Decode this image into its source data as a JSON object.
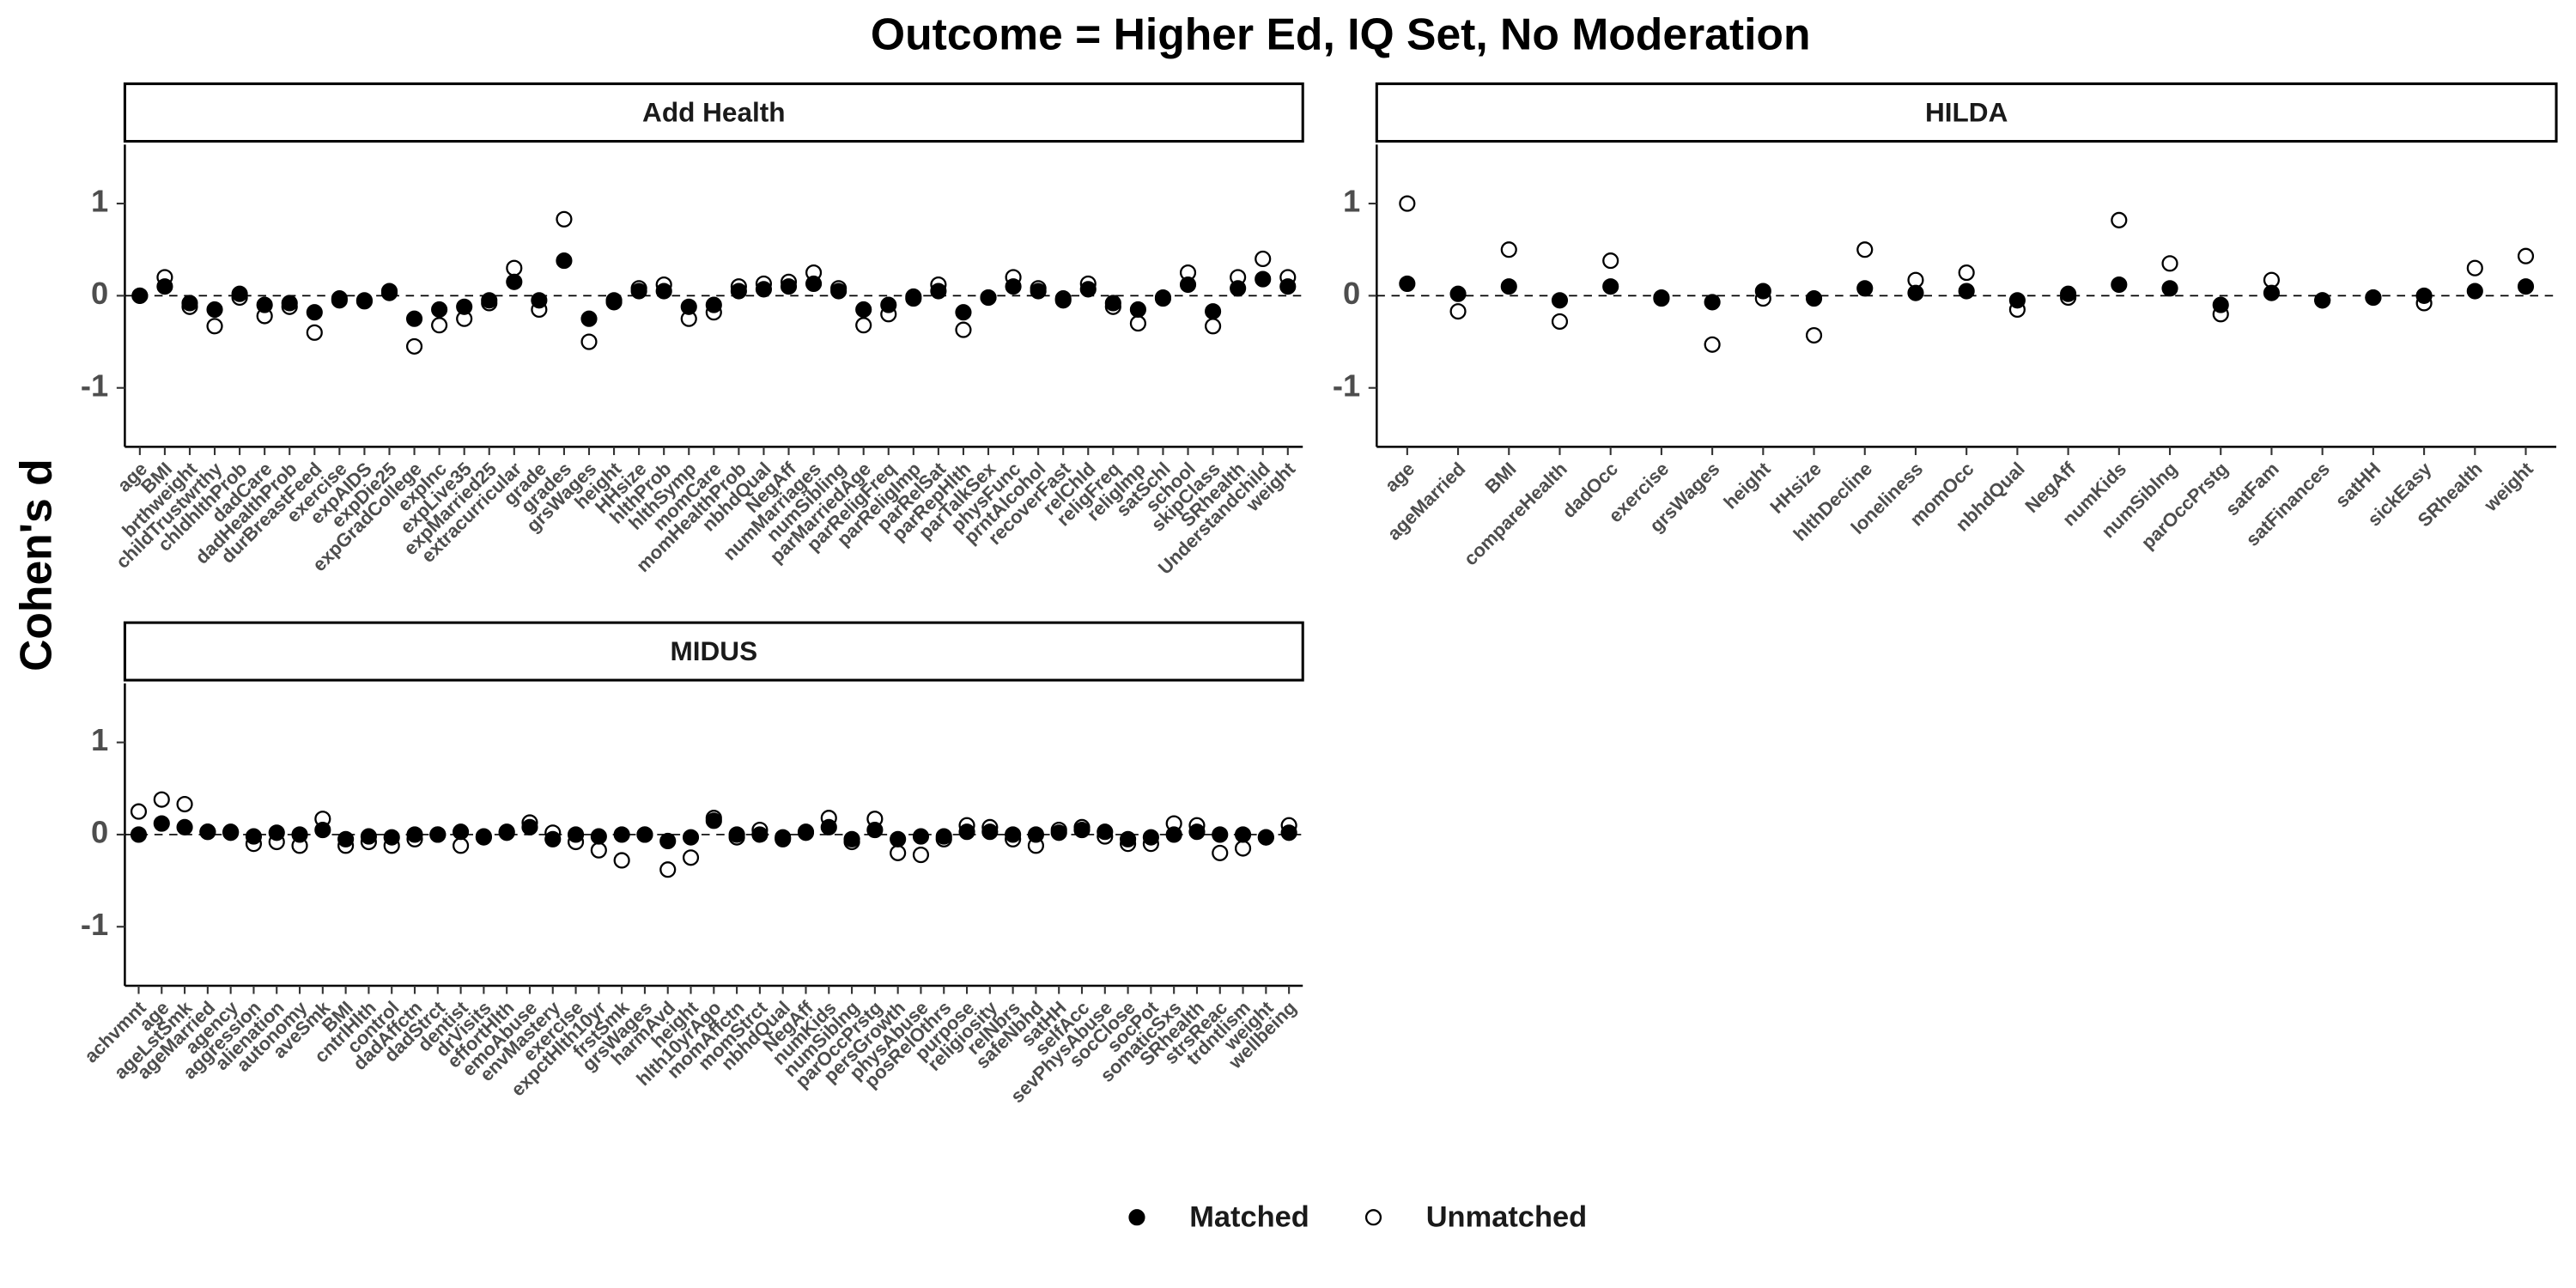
{
  "title": "Outcome = Higher Ed, IQ Set, No Moderation",
  "y_label": "Cohen's d",
  "chart_data": [
    {
      "type": "dot",
      "title": "Add Health",
      "categories": [
        "age",
        "BMI",
        "brthweight",
        "childTrustwrthy",
        "chldhlthProb",
        "dadCare",
        "dadHealthProb",
        "durBreastFeed",
        "exercise",
        "expAIDS",
        "expDie25",
        "expGradCollege",
        "expInc",
        "expLive35",
        "expMarried25",
        "extracurricular",
        "grade",
        "grades",
        "grsWages",
        "height",
        "HHsize",
        "hlthProb",
        "hlthSymp",
        "momCare",
        "momHealthProb",
        "nbhdQual",
        "NegAff",
        "numMarriages",
        "numSibling",
        "parMarriedAge",
        "parReligFreq",
        "parReligImp",
        "parRelSat",
        "parRepHlth",
        "parTalkSex",
        "physFunc",
        "prntAlcohol",
        "recoverFast",
        "relChld",
        "religFreq",
        "religImp",
        "satSchl",
        "school",
        "skipClass",
        "SRhealth",
        "Understandchild",
        "weight"
      ],
      "series": [
        {
          "name": "Matched",
          "color": "#000000",
          "values": [
            0,
            0.1,
            -0.08,
            -0.15,
            0.02,
            -0.1,
            -0.08,
            -0.18,
            -0.03,
            -0.06,
            0.05,
            -0.25,
            -0.15,
            -0.12,
            -0.05,
            0.15,
            -0.05,
            0.38,
            -0.25,
            -0.07,
            0.05,
            0.05,
            -0.12,
            -0.1,
            0.05,
            0.07,
            0.1,
            0.13,
            0.05,
            -0.15,
            -0.1,
            -0.03,
            0.05,
            -0.18,
            -0.02,
            0.1,
            0.05,
            -0.05,
            0.07,
            -0.08,
            -0.15,
            -0.03,
            0.12,
            -0.17,
            0.08,
            0.18,
            0.1
          ]
        },
        {
          "name": "Unmatched",
          "color": "#ffffff",
          "values": [
            0,
            0.2,
            -0.12,
            -0.33,
            -0.02,
            -0.22,
            -0.12,
            -0.4,
            -0.05,
            -0.05,
            0.03,
            -0.55,
            -0.32,
            -0.25,
            -0.08,
            0.3,
            -0.15,
            0.83,
            -0.5,
            -0.05,
            0.08,
            0.12,
            -0.25,
            -0.18,
            0.1,
            0.13,
            0.15,
            0.25,
            0.08,
            -0.32,
            -0.2,
            -0.01,
            0.12,
            -0.37,
            -0.02,
            0.2,
            0.08,
            -0.03,
            0.13,
            -0.12,
            -0.3,
            -0.02,
            0.25,
            -0.33,
            0.2,
            0.4,
            0.2
          ]
        }
      ],
      "ylim": [
        -1.64,
        1.64
      ],
      "yticks": [
        -1,
        0,
        1
      ],
      "hline": 0
    },
    {
      "type": "dot",
      "title": "HILDA",
      "categories": [
        "age",
        "ageMarried",
        "BMI",
        "compareHealth",
        "dadOcc",
        "exercise",
        "grsWages",
        "height",
        "HHsize",
        "hlthDecline",
        "loneliness",
        "momOcc",
        "nbhdQual",
        "NegAff",
        "numKids",
        "numSiblng",
        "parOccPrstg",
        "satFam",
        "satFinances",
        "satHH",
        "sickEasy",
        "SRhealth",
        "weight"
      ],
      "series": [
        {
          "name": "Matched",
          "color": "#000000",
          "values": [
            0.13,
            0.02,
            0.1,
            -0.05,
            0.1,
            -0.02,
            -0.07,
            0.05,
            -0.03,
            0.08,
            0.03,
            0.05,
            -0.05,
            0.02,
            0.12,
            0.08,
            -0.1,
            0.03,
            -0.05,
            -0.02,
            0,
            0.05,
            0.1
          ]
        },
        {
          "name": "Unmatched",
          "color": "#ffffff",
          "values": [
            1.0,
            -0.17,
            0.5,
            -0.28,
            0.38,
            -0.03,
            -0.53,
            -0.03,
            -0.43,
            0.5,
            0.17,
            0.25,
            -0.15,
            -0.02,
            0.82,
            0.35,
            -0.2,
            0.17,
            -0.05,
            -0.02,
            -0.08,
            0.3,
            0.43
          ]
        }
      ],
      "ylim": [
        -1.64,
        1.64
      ],
      "yticks": [
        -1,
        0,
        1
      ],
      "hline": 0
    },
    {
      "type": "dot",
      "title": "MIDUS",
      "categories": [
        "achvmnt",
        "age",
        "ageLstSmk",
        "ageMarried",
        "agency",
        "aggression",
        "alienation",
        "autonomy",
        "aveSmk",
        "BMI",
        "cntrlHlth",
        "control",
        "dadAffctn",
        "dadStrct",
        "dentist",
        "drVisits",
        "effortHlth",
        "emoAbuse",
        "envMastery",
        "exercise",
        "expctHlth10yr",
        "frstSmk",
        "grsWages",
        "harmAvd",
        "height",
        "hlth10yrAgo",
        "momAffctn",
        "momStrct",
        "nbhdQual",
        "NegAff",
        "numKids",
        "numSiblng",
        "parOccPrstg",
        "persGrowth",
        "physAbuse",
        "posRelOthrs",
        "purpose",
        "religiosity",
        "relNbrs",
        "safeNbhd",
        "satHH",
        "selfAcc",
        "sevPhysAbuse",
        "socClose",
        "socPot",
        "somaticSxs",
        "SRhealth",
        "strsReac",
        "trdntlism",
        "weight",
        "wellbeing"
      ],
      "series": [
        {
          "name": "Matched",
          "color": "#000000",
          "values": [
            0,
            0.12,
            0.08,
            0.03,
            0.03,
            -0.02,
            0.02,
            0,
            0.05,
            -0.05,
            -0.02,
            -0.03,
            0,
            0,
            0.03,
            -0.03,
            0.02,
            0.08,
            -0.05,
            0,
            -0.02,
            0,
            0,
            -0.07,
            -0.03,
            0.15,
            0,
            0,
            -0.03,
            0.03,
            0.08,
            -0.05,
            0.05,
            -0.05,
            -0.02,
            -0.02,
            0.03,
            0.03,
            0,
            0,
            0.02,
            0.05,
            0.03,
            -0.05,
            -0.03,
            0,
            0.03,
            0,
            0,
            -0.03,
            0.02
          ]
        },
        {
          "name": "Unmatched",
          "color": "#ffffff",
          "values": [
            0.25,
            0.38,
            0.33,
            0.03,
            0.02,
            -0.1,
            -0.08,
            -0.12,
            0.17,
            -0.12,
            -0.08,
            -0.12,
            -0.05,
            0,
            -0.12,
            -0.02,
            0.03,
            0.13,
            0.02,
            -0.08,
            -0.17,
            -0.28,
            0,
            -0.38,
            -0.25,
            0.18,
            -0.03,
            0.05,
            -0.05,
            0.02,
            0.18,
            -0.08,
            0.17,
            -0.2,
            -0.22,
            -0.05,
            0.1,
            0.08,
            -0.05,
            -0.12,
            0.05,
            0.08,
            -0.02,
            -0.1,
            -0.1,
            0.12,
            0.1,
            -0.2,
            -0.15,
            -0.03,
            0.1
          ]
        }
      ],
      "ylim": [
        -1.64,
        1.64
      ],
      "yticks": [
        -1,
        0,
        1
      ],
      "hline": 0
    }
  ]
}
